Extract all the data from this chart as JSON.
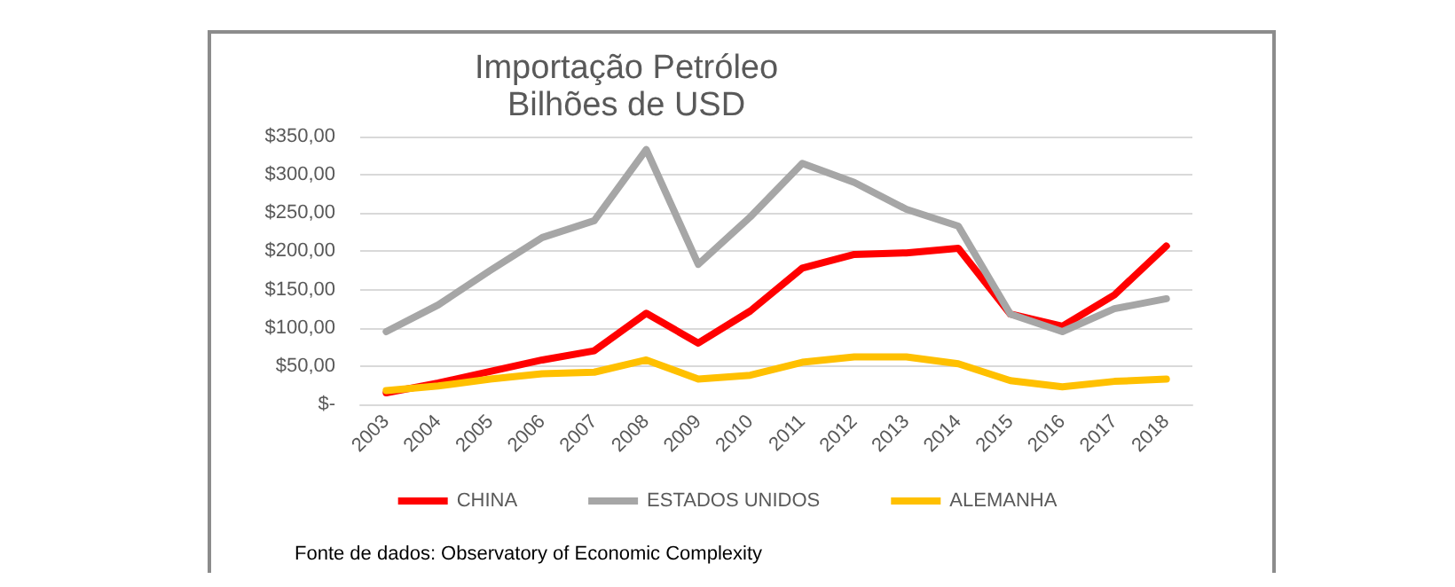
{
  "chart_data": {
    "type": "line",
    "title": "Importação Petróleo",
    "subtitle": "Bilhões de USD",
    "categories": [
      "2003",
      "2004",
      "2005",
      "2006",
      "2007",
      "2008",
      "2009",
      "2010",
      "2011",
      "2012",
      "2013",
      "2014",
      "2015",
      "2016",
      "2017",
      "2018"
    ],
    "series": [
      {
        "name": "CHINA",
        "color": "#ff0000",
        "values": [
          15,
          28,
          43,
          58,
          70,
          119,
          80,
          122,
          178,
          196,
          198,
          204,
          118,
          102,
          143,
          207
        ]
      },
      {
        "name": "ESTADOS UNIDOS",
        "color": "#a6a6a6",
        "values": [
          95,
          130,
          175,
          218,
          240,
          333,
          183,
          245,
          315,
          290,
          255,
          233,
          118,
          95,
          125,
          138
        ]
      },
      {
        "name": "ALEMANHA",
        "color": "#ffc000",
        "values": [
          18,
          24,
          33,
          40,
          42,
          58,
          33,
          38,
          55,
          62,
          62,
          53,
          31,
          23,
          30,
          33
        ]
      }
    ],
    "ylim": [
      0,
      350
    ],
    "yticks": [
      {
        "value": 0,
        "label": "$-"
      },
      {
        "value": 50,
        "label": "$50,00"
      },
      {
        "value": 100,
        "label": "$100,00"
      },
      {
        "value": 150,
        "label": "$150,00"
      },
      {
        "value": 200,
        "label": "$200,00"
      },
      {
        "value": 250,
        "label": "$250,00"
      },
      {
        "value": 300,
        "label": "$300,00"
      },
      {
        "value": 350,
        "label": "$350,00"
      }
    ],
    "grid": "y",
    "legend": "bottom",
    "marker": "none",
    "line_style": "solid",
    "annotations": [
      "Fonte de dados: Observatory of Economic Complexity"
    ]
  }
}
